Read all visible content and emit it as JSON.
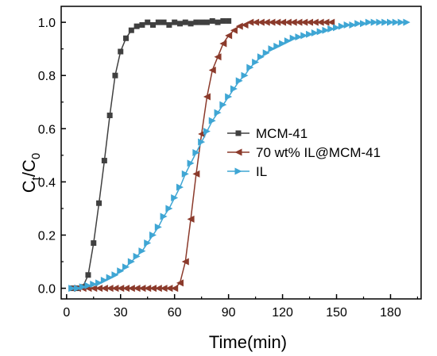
{
  "chart_data": {
    "type": "line",
    "xlabel": "Time(min)",
    "ylabel_main": "C",
    "ylabel_sub1": "t",
    "ylabel_mid": "/C",
    "ylabel_sub2": "0",
    "xlim": [
      -3,
      197
    ],
    "ylim": [
      -0.04,
      1.06
    ],
    "xticks": [
      0,
      30,
      60,
      90,
      120,
      150,
      180
    ],
    "yticks": [
      0.0,
      0.2,
      0.4,
      0.6,
      0.8,
      1.0
    ],
    "ytick_labels": [
      "0.0",
      "0.2",
      "0.4",
      "0.6",
      "0.8",
      "1.0"
    ],
    "legend_position": "center-right",
    "series": [
      {
        "name": "MCM-41",
        "color": "#404040",
        "marker": "square",
        "x": [
          3,
          6,
          9,
          12,
          15,
          18,
          21,
          24,
          27,
          30,
          33,
          36,
          39,
          42,
          45,
          48,
          51,
          54,
          57,
          60,
          63,
          66,
          69,
          72,
          75,
          78,
          81,
          84,
          87,
          90
        ],
        "y": [
          0.0,
          0.0,
          0.005,
          0.05,
          0.17,
          0.32,
          0.48,
          0.65,
          0.8,
          0.89,
          0.94,
          0.97,
          0.985,
          0.99,
          1.0,
          0.99,
          1.0,
          1.0,
          0.99,
          1.0,
          0.995,
          1.0,
          0.995,
          1.0,
          1.0,
          1.0,
          1.005,
          1.0,
          1.005,
          1.005
        ]
      },
      {
        "name": "70 wt% IL@MCM-41",
        "color": "#8b3a2b",
        "marker": "triangle-left",
        "x": [
          3,
          6,
          9,
          12,
          15,
          18,
          21,
          24,
          27,
          30,
          33,
          36,
          39,
          42,
          45,
          48,
          51,
          54,
          57,
          60,
          63,
          66,
          69,
          72,
          75,
          78,
          81,
          84,
          87,
          90,
          93,
          96,
          99,
          102,
          105,
          108,
          111,
          114,
          117,
          120,
          123,
          126,
          129,
          132,
          135,
          138,
          141,
          144,
          147
        ],
        "y": [
          0.0,
          0.0,
          0.0,
          0.0,
          0.0,
          0.0,
          0.0,
          0.0,
          0.0,
          0.0,
          0.0,
          0.0,
          0.0,
          0.0,
          0.0,
          0.0,
          0.0,
          0.0,
          0.0,
          0.0,
          0.02,
          0.1,
          0.26,
          0.43,
          0.58,
          0.72,
          0.82,
          0.87,
          0.92,
          0.95,
          0.97,
          0.985,
          0.99,
          1.0,
          1.0,
          1.0,
          1.0,
          1.0,
          1.0,
          1.0,
          1.0,
          1.0,
          1.0,
          1.0,
          1.0,
          1.0,
          1.0,
          1.0,
          1.0
        ]
      },
      {
        "name": "IL",
        "color": "#3fa6d4",
        "marker": "triangle-right",
        "x": [
          3,
          6,
          9,
          12,
          15,
          18,
          21,
          24,
          27,
          30,
          33,
          36,
          39,
          42,
          45,
          48,
          51,
          54,
          57,
          60,
          63,
          66,
          69,
          72,
          75,
          78,
          81,
          84,
          87,
          90,
          93,
          96,
          99,
          102,
          105,
          108,
          111,
          114,
          117,
          120,
          123,
          126,
          129,
          132,
          135,
          138,
          141,
          144,
          147,
          150,
          153,
          156,
          159,
          162,
          165,
          168,
          171,
          174,
          177,
          180,
          183,
          186,
          189
        ],
        "y": [
          0.0,
          0.0,
          0.005,
          0.01,
          0.015,
          0.02,
          0.03,
          0.04,
          0.05,
          0.065,
          0.08,
          0.1,
          0.12,
          0.14,
          0.17,
          0.2,
          0.23,
          0.27,
          0.3,
          0.34,
          0.38,
          0.43,
          0.47,
          0.51,
          0.55,
          0.59,
          0.63,
          0.66,
          0.69,
          0.72,
          0.75,
          0.78,
          0.8,
          0.83,
          0.85,
          0.87,
          0.885,
          0.9,
          0.91,
          0.92,
          0.93,
          0.94,
          0.945,
          0.95,
          0.955,
          0.96,
          0.965,
          0.97,
          0.975,
          0.98,
          0.985,
          0.99,
          0.99,
          0.995,
          0.995,
          1.0,
          1.0,
          1.0,
          1.0,
          1.0,
          1.0,
          1.0,
          1.0
        ]
      }
    ]
  }
}
